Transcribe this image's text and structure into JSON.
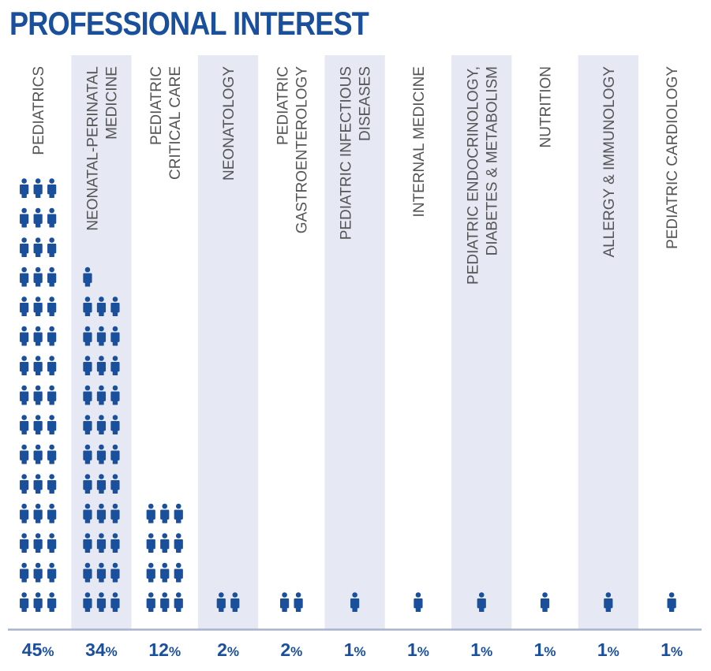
{
  "title": "PROFESSIONAL INTEREST",
  "colors": {
    "accent": "#1a4f9c",
    "band": "#e6e9f4",
    "axis": "#aab3cc",
    "label": "#555555"
  },
  "icon": "person-icon",
  "chart_data": {
    "type": "bar",
    "title": "PROFESSIONAL INTEREST",
    "unit": "%",
    "categories": [
      [
        "PEDIATRICS"
      ],
      [
        "NEONATAL-PERINATAL",
        "MEDICINE"
      ],
      [
        "PEDIATRIC",
        "CRITICAL CARE"
      ],
      [
        "NEONATOLOGY"
      ],
      [
        "PEDIATRIC",
        "GASTROENTEROLOGY"
      ],
      [
        "PEDIATRIC INFECTIOUS",
        "DISEASES"
      ],
      [
        "INTERNAL MEDICINE"
      ],
      [
        "PEDIATRIC ENDOCRINOLOGY,",
        "DIABETES & METABOLISM"
      ],
      [
        "NUTRITION"
      ],
      [
        "ALLERGY & IMMUNOLOGY"
      ],
      [
        "PEDIATRIC CARDIOLOGY"
      ]
    ],
    "values": [
      45,
      34,
      12,
      2,
      2,
      1,
      1,
      1,
      1,
      1,
      1
    ],
    "icon_counts": [
      45,
      34,
      12,
      2,
      2,
      1,
      1,
      1,
      1,
      1,
      1
    ],
    "value_labels": [
      "45",
      "34",
      "12",
      "2",
      "2",
      "1",
      "1",
      "1",
      "1",
      "1",
      "1"
    ],
    "shaded_columns": [
      1,
      3,
      5,
      7,
      9
    ]
  }
}
